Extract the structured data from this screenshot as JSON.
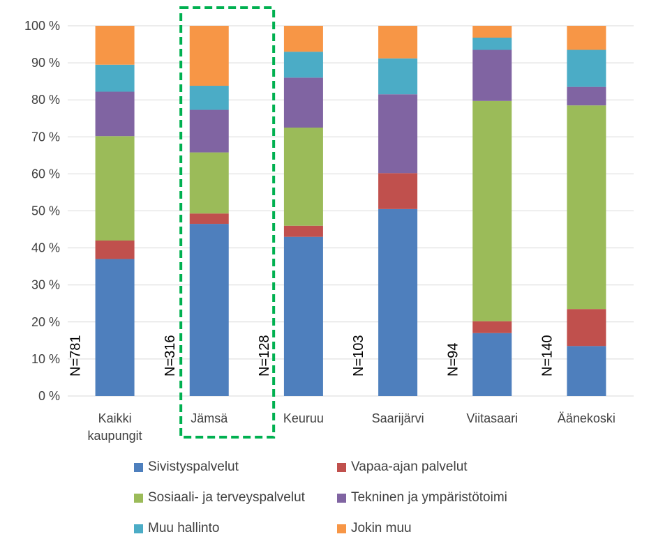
{
  "chart_data": {
    "type": "bar",
    "stacked": true,
    "percent_stacked": true,
    "categories": [
      "Kaikki kaupungit",
      "Jämsä",
      "Keuruu",
      "Saarijärvi",
      "Viitasaari",
      "Äänekoski"
    ],
    "category_lines": [
      [
        "Kaikki",
        "kaupungit"
      ],
      [
        "Jämsä"
      ],
      [
        "Keuruu"
      ],
      [
        "Saarijärvi"
      ],
      [
        "Viitasaari"
      ],
      [
        "Äänekoski"
      ]
    ],
    "n_labels": [
      "N=781",
      "N=316",
      "N=128",
      "N=103",
      "N=94",
      "N=140"
    ],
    "series": [
      {
        "name": "Sivistyspalvelut",
        "color": "#4e7fbd",
        "values": [
          37.0,
          46.5,
          43.0,
          50.5,
          17.0,
          13.5
        ]
      },
      {
        "name": "Vapaa-ajan palvelut",
        "color": "#c0504d",
        "values": [
          5.0,
          2.8,
          3.0,
          9.7,
          3.2,
          10.0
        ]
      },
      {
        "name": "Sosiaali- ja terveyspalvelut",
        "color": "#9bbb59",
        "values": [
          28.2,
          16.5,
          26.5,
          0.0,
          59.5,
          55.0
        ]
      },
      {
        "name": "Tekninen ja ympäristötoimi",
        "color": "#8064a2",
        "values": [
          12.0,
          11.5,
          13.5,
          21.3,
          13.8,
          5.0
        ]
      },
      {
        "name": "Muu hallinto",
        "color": "#4bacc6",
        "values": [
          7.3,
          6.5,
          7.0,
          9.7,
          3.3,
          10.0
        ]
      },
      {
        "name": "Jokin muu",
        "color": "#f79646",
        "values": [
          10.5,
          16.2,
          7.0,
          8.8,
          3.2,
          6.5
        ]
      }
    ],
    "ylim": [
      0,
      100
    ],
    "yticks": [
      0,
      10,
      20,
      30,
      40,
      50,
      60,
      70,
      80,
      90,
      100
    ],
    "ytick_labels": [
      "0 %",
      "10 %",
      "20 %",
      "30 %",
      "40 %",
      "50 %",
      "60 %",
      "70 %",
      "80 %",
      "90 %",
      "100 %"
    ],
    "grid": true,
    "legend_position": "bottom",
    "highlight": {
      "category": "Jämsä",
      "style": "dashed-box",
      "color": "#00b050"
    },
    "title": "",
    "xlabel": "",
    "ylabel": ""
  }
}
